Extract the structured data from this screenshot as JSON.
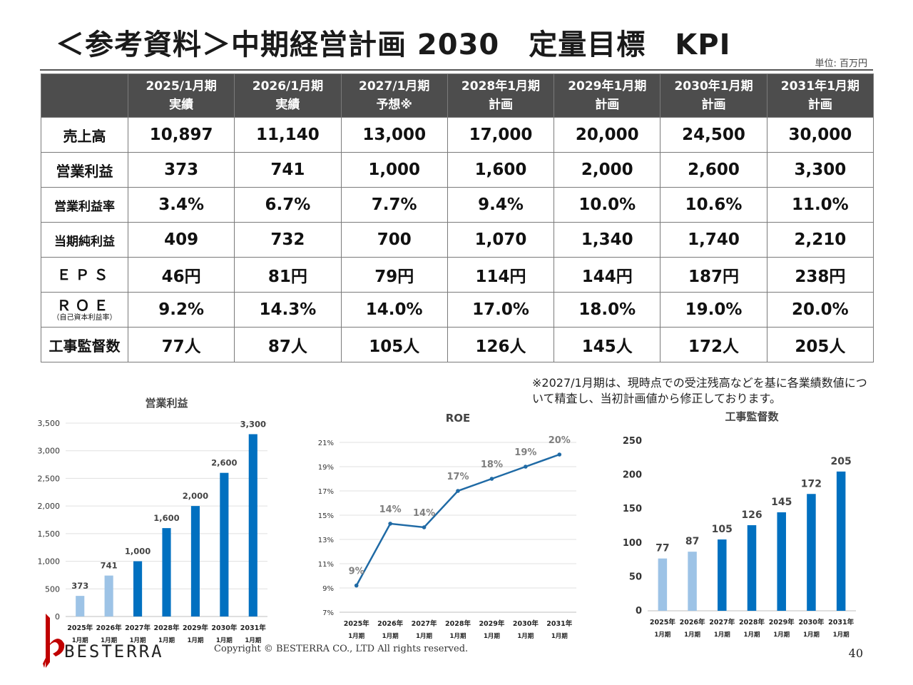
{
  "title": "＜参考資料＞中期経営計画 2030　定量目標　KPI",
  "unit": "単位: 百万円",
  "table": {
    "headers": [
      {
        "l1": "2025/1月期",
        "l2": "実績"
      },
      {
        "l1": "2026/1月期",
        "l2": "実績"
      },
      {
        "l1": "2027/1月期",
        "l2": "予想※"
      },
      {
        "l1": "2028年1月期",
        "l2": "計画"
      },
      {
        "l1": "2029年1月期",
        "l2": "計画"
      },
      {
        "l1": "2030年1月期",
        "l2": "計画"
      },
      {
        "l1": "2031年1月期",
        "l2": "計画"
      }
    ],
    "rows": [
      {
        "label": "売上高",
        "values": [
          "10,897",
          "11,140",
          "13,000",
          "17,000",
          "20,000",
          "24,500",
          "30,000"
        ]
      },
      {
        "label": "営業利益",
        "values": [
          "373",
          "741",
          "1,000",
          "1,600",
          "2,000",
          "2,600",
          "3,300"
        ]
      },
      {
        "label": "営業利益率",
        "values": [
          "3.4%",
          "6.7%",
          "7.7%",
          "9.4%",
          "10.0%",
          "10.6%",
          "11.0%"
        ]
      },
      {
        "label": "当期純利益",
        "values": [
          "409",
          "732",
          "700",
          "1,070",
          "1,340",
          "1,740",
          "2,210"
        ]
      },
      {
        "label": "ＥＰＳ",
        "values": [
          "46円",
          "81円",
          "79円",
          "114円",
          "144円",
          "187円",
          "238円"
        ]
      },
      {
        "label": "ＲＯＥ",
        "sub": "（自己資本利益率）",
        "values": [
          "9.2%",
          "14.3%",
          "14.0%",
          "17.0%",
          "18.0%",
          "19.0%",
          "20.0%"
        ]
      },
      {
        "label": "工事監督数",
        "values": [
          "77人",
          "87人",
          "105人",
          "126人",
          "145人",
          "172人",
          "205人"
        ]
      }
    ]
  },
  "note": "※2027/1月期は、現時点での受注残高などを基に各業績数値について精査し、当初計画値から修正しております。",
  "colors": {
    "light_bar": "#9dc3e6",
    "dark_bar": "#0070c0",
    "line": "#1f6aa5",
    "header_bg": "#4d4d4d"
  },
  "chart_data": [
    {
      "type": "bar",
      "title": "営業利益",
      "categories": [
        [
          "2025年",
          "1月期"
        ],
        [
          "2026年",
          "1月期"
        ],
        [
          "2027年",
          "1月期"
        ],
        [
          "2028年",
          "1月期"
        ],
        [
          "2029年",
          "1月期"
        ],
        [
          "2030年",
          "1月期"
        ],
        [
          "2031年",
          "1月期"
        ]
      ],
      "values": [
        373,
        741,
        1000,
        1600,
        2000,
        2600,
        3300
      ],
      "labels": [
        "373",
        "741",
        "1,000",
        "1,600",
        "2,000",
        "2,600",
        "3,300"
      ],
      "ylim": [
        0,
        3500
      ],
      "yticks": [
        "0",
        "500",
        "1,000",
        "1,500",
        "2,000",
        "2,500",
        "3,000",
        "3,500"
      ],
      "actual_count": 2,
      "grid": true
    },
    {
      "type": "line",
      "title": "ROE",
      "categories": [
        [
          "2025年",
          "1月期"
        ],
        [
          "2026年",
          "1月期"
        ],
        [
          "2027年",
          "1月期"
        ],
        [
          "2028年",
          "1月期"
        ],
        [
          "2029年",
          "1月期"
        ],
        [
          "2030年",
          "1月期"
        ],
        [
          "2031年",
          "1月期"
        ]
      ],
      "values": [
        9.2,
        14.3,
        14.0,
        17.0,
        18.0,
        19.0,
        20.0
      ],
      "labels": [
        "9%",
        "14%",
        "14%",
        "17%",
        "18%",
        "19%",
        "20%"
      ],
      "ylim": [
        7,
        21
      ],
      "yticks": [
        "7%",
        "9%",
        "11%",
        "13%",
        "15%",
        "17%",
        "19%",
        "21%"
      ],
      "grid": true
    },
    {
      "type": "bar",
      "title": "工事監督数",
      "categories": [
        [
          "2025年",
          "1月期"
        ],
        [
          "2026年",
          "1月期"
        ],
        [
          "2027年",
          "1月期"
        ],
        [
          "2028年",
          "1月期"
        ],
        [
          "2029年",
          "1月期"
        ],
        [
          "2030年",
          "1月期"
        ],
        [
          "2031年",
          "1月期"
        ]
      ],
      "values": [
        77,
        87,
        105,
        126,
        145,
        172,
        205
      ],
      "labels": [
        "77",
        "87",
        "105",
        "126",
        "145",
        "172",
        "205"
      ],
      "ylim": [
        0,
        250
      ],
      "yticks": [
        "0",
        "50",
        "100",
        "150",
        "200",
        "250"
      ],
      "actual_count": 2,
      "grid": false
    }
  ],
  "footer": {
    "logo_text": "BESTERRA",
    "copyright": "Copyright © BESTERRA CO., LTD All rights reserved.",
    "page_number": "40"
  }
}
